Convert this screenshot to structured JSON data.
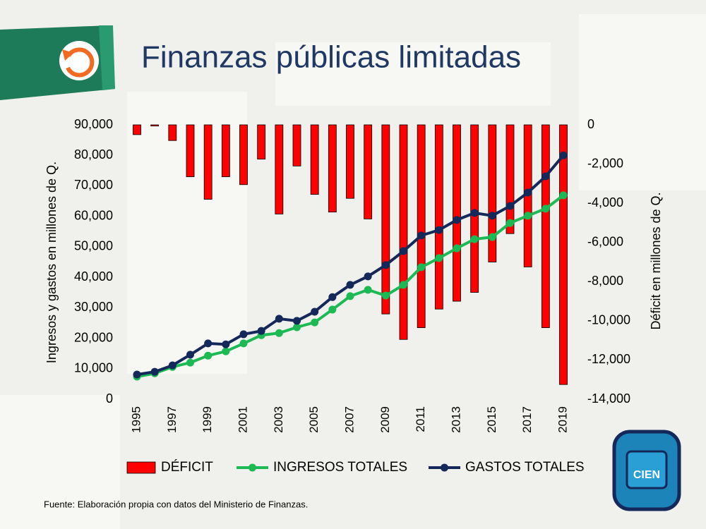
{
  "title": "Finanzas públicas limitadas",
  "source": "Fuente: Elaboración propia con datos del Ministerio de Finanzas.",
  "logo": "CIEN",
  "chart_data": {
    "type": "combo",
    "ylabel": "Ingresos y gastos en millones de Q.",
    "y2label": "Déficit en millones de Q.",
    "categories": [
      "1995",
      null,
      "1997",
      null,
      "1999",
      null,
      "2001",
      null,
      "2003",
      null,
      "2005",
      null,
      "2007",
      null,
      "2009",
      null,
      "2011",
      null,
      "2013",
      null,
      "2015",
      null,
      "2017",
      null,
      "2019"
    ],
    "ylim": [
      0,
      90000
    ],
    "yticks": [
      0,
      {
        "value": 10000,
        "label": "10,000"
      },
      {
        "value": 20000,
        "label": "20,000"
      },
      {
        "value": 30000,
        "label": "30,000"
      },
      {
        "value": 40000,
        "label": "40,000"
      },
      {
        "value": 50000,
        "label": "50,000"
      },
      {
        "value": 60000,
        "label": "60,000"
      },
      {
        "value": 70000,
        "label": "70,000"
      },
      {
        "value": 80000,
        "label": "80,000"
      },
      {
        "value": 90000,
        "label": "90,000"
      }
    ],
    "y2lim": [
      -14000,
      0
    ],
    "y2ticks": [
      0,
      {
        "value": -2000,
        "label": "-2,000"
      },
      {
        "value": -4000,
        "label": "-4,000"
      },
      {
        "value": -6000,
        "label": "-6,000"
      },
      {
        "value": -8000,
        "label": "-8,000"
      },
      {
        "value": -10000,
        "label": "-10,000"
      },
      {
        "value": -12000,
        "label": "-12,000"
      },
      {
        "value": -14000,
        "label": "-14,000"
      }
    ],
    "series": [
      {
        "name": "DÉFICIT",
        "type": "bar",
        "axis": "y2",
        "color": "#ff0000",
        "values": [
          -500,
          -60,
          -800,
          -2650,
          -3800,
          -2650,
          -3050,
          -1750,
          -4550,
          -2100,
          -3550,
          -4450,
          -3750,
          -4800,
          -9650,
          -10950,
          -10350,
          -9400,
          -9000,
          -8550,
          -7000,
          -5550,
          -7250,
          -10350,
          -13250
        ]
      },
      {
        "name": "INGRESOS TOTALES",
        "type": "line",
        "color": "#1db954",
        "values": [
          7400,
          8500,
          10600,
          12000,
          14300,
          15700,
          18300,
          21000,
          21700,
          23600,
          25200,
          29400,
          33800,
          35900,
          34000,
          37500,
          43300,
          46300,
          49500,
          52500,
          53200,
          57800,
          60200,
          62500,
          66900
        ]
      },
      {
        "name": "GASTOS TOTALES",
        "type": "line",
        "color": "#14285a",
        "values": [
          8100,
          9000,
          11100,
          14600,
          18300,
          18000,
          21300,
          22400,
          26400,
          25700,
          28700,
          33500,
          37500,
          40300,
          44000,
          48600,
          53700,
          55500,
          58800,
          61100,
          60200,
          63400,
          67800,
          73100,
          80000
        ]
      }
    ]
  }
}
